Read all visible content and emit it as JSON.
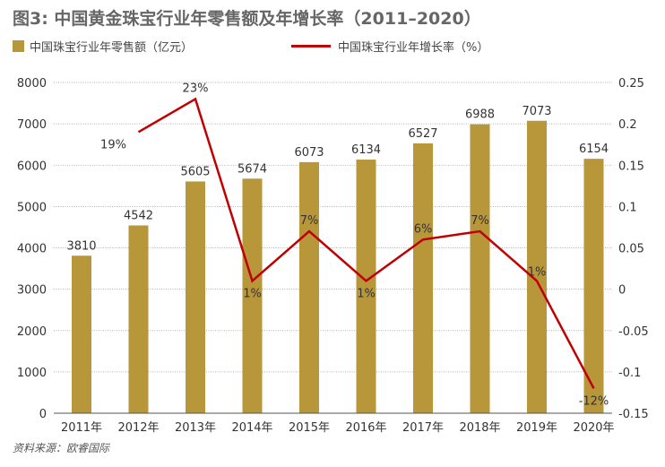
{
  "title": "图3: 中国黄金珠宝行业年零售额及年增长率（2011–2020）",
  "source": "资料来源：欧睿国际",
  "colors": {
    "bar": "#b8963a",
    "line": "#c00000",
    "title": "#666666"
  },
  "chart_data": {
    "type": "bar+line",
    "categories": [
      "2011年",
      "2012年",
      "2013年",
      "2014年",
      "2015年",
      "2016年",
      "2017年",
      "2018年",
      "2019年",
      "2020年"
    ],
    "series": [
      {
        "name": "中国珠宝行业年零售额（亿元）",
        "type": "bar",
        "axis": "left",
        "values": [
          3810,
          4542,
          5605,
          5674,
          6073,
          6134,
          6527,
          6988,
          7073,
          6154
        ],
        "labels": [
          "3810",
          "4542",
          "5605",
          "5674",
          "6073",
          "6134",
          "6527",
          "6988",
          "7073",
          "6154"
        ]
      },
      {
        "name": "中国珠宝行业年增长率（%）",
        "type": "line",
        "axis": "right",
        "values": [
          null,
          0.19,
          0.23,
          0.01,
          0.07,
          0.01,
          0.06,
          0.07,
          0.01,
          -0.12
        ],
        "labels": [
          "",
          "19%",
          "23%",
          "1%",
          "7%",
          "1%",
          "6%",
          "7%",
          "1%",
          "-12%"
        ]
      }
    ],
    "left_axis": {
      "range": [
        0,
        8000
      ],
      "ticks": [
        "0",
        "1000",
        "2000",
        "3000",
        "4000",
        "5000",
        "6000",
        "7000",
        "8000"
      ]
    },
    "right_axis": {
      "range": [
        -0.15,
        0.25
      ],
      "ticks": [
        "-0.15",
        "-0.1",
        "-0.05",
        "0",
        "0.05",
        "0.1",
        "0.15",
        "0.2",
        "0.25"
      ]
    },
    "grid": true,
    "legend": "top-left"
  }
}
